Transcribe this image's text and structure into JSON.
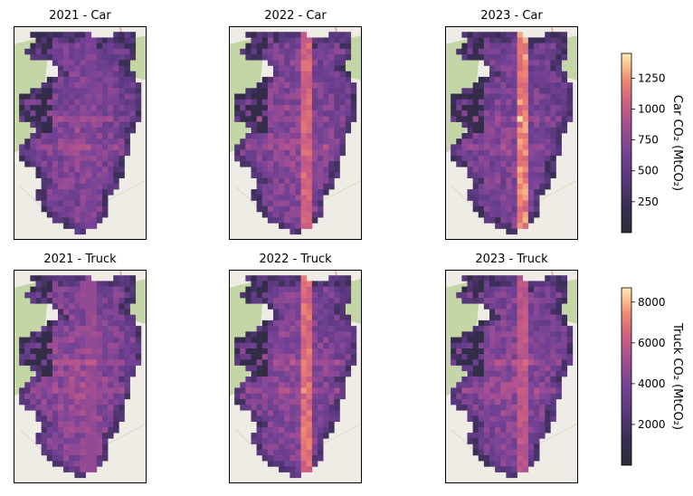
{
  "chart_data": [
    {
      "type": "heatmap",
      "title": "2021 - Car",
      "vehicle": "car",
      "year": "2021",
      "road_intensity": 0.45,
      "base_level": 0.48
    },
    {
      "type": "heatmap",
      "title": "2022 - Car",
      "vehicle": "car",
      "year": "2022",
      "road_intensity": 0.8,
      "base_level": 0.5
    },
    {
      "type": "heatmap",
      "title": "2023 - Car",
      "vehicle": "car",
      "year": "2023",
      "road_intensity": 0.92,
      "base_level": 0.47
    },
    {
      "type": "heatmap",
      "title": "2021 - Truck",
      "vehicle": "truck",
      "year": "2021",
      "road_intensity": 0.55,
      "base_level": 0.52
    },
    {
      "type": "heatmap",
      "title": "2022 - Truck",
      "vehicle": "truck",
      "year": "2022",
      "road_intensity": 0.85,
      "base_level": 0.5
    },
    {
      "type": "heatmap",
      "title": "2023 - Truck",
      "vehicle": "truck",
      "year": "2023",
      "road_intensity": 0.72,
      "base_level": 0.5
    }
  ],
  "colorbars": {
    "car": {
      "label": "Car CO₂ (MtCO₂)",
      "min": 0,
      "max": 1450,
      "ticks": [
        250,
        500,
        750,
        1000,
        1250
      ],
      "tick_labels": [
        "250",
        "500",
        "750",
        "1000",
        "1250"
      ]
    },
    "truck": {
      "label": "Truck CO₂ (MtCO₂)",
      "min": 0,
      "max": 8700,
      "ticks": [
        2000,
        4000,
        6000,
        8000
      ],
      "tick_labels": [
        "2000",
        "4000",
        "6000",
        "8000"
      ]
    }
  },
  "colormap": "magma",
  "colors": {
    "park": "#c5d6a6",
    "basemap": "#efece6",
    "road_major": "#e0a3a0"
  }
}
